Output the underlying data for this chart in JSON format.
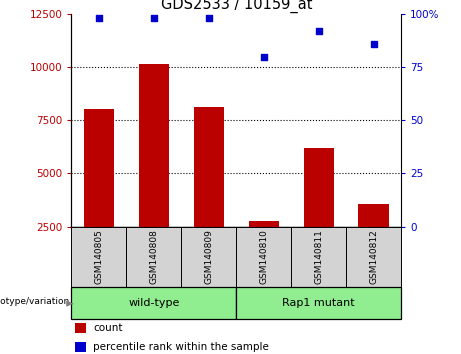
{
  "title": "GDS2533 / 10159_at",
  "samples": [
    "GSM140805",
    "GSM140808",
    "GSM140809",
    "GSM140810",
    "GSM140811",
    "GSM140812"
  ],
  "counts": [
    8050,
    10150,
    8150,
    2750,
    6200,
    3550
  ],
  "percentile_ranks": [
    98,
    98,
    98,
    80,
    92,
    86
  ],
  "bar_color": "#bb0000",
  "dot_color": "#0000cc",
  "ylim_left": [
    2500,
    12500
  ],
  "ylim_right": [
    0,
    100
  ],
  "yticks_left": [
    2500,
    5000,
    7500,
    10000,
    12500
  ],
  "yticks_right": [
    0,
    25,
    50,
    75,
    100
  ],
  "grid_vals": [
    5000,
    7500,
    10000
  ],
  "group_color": "#90EE90",
  "legend_items": [
    "count",
    "percentile rank within the sample"
  ],
  "legend_colors": [
    "#bb0000",
    "#0000cc"
  ],
  "fig_width": 4.61,
  "fig_height": 3.54,
  "dpi": 100
}
